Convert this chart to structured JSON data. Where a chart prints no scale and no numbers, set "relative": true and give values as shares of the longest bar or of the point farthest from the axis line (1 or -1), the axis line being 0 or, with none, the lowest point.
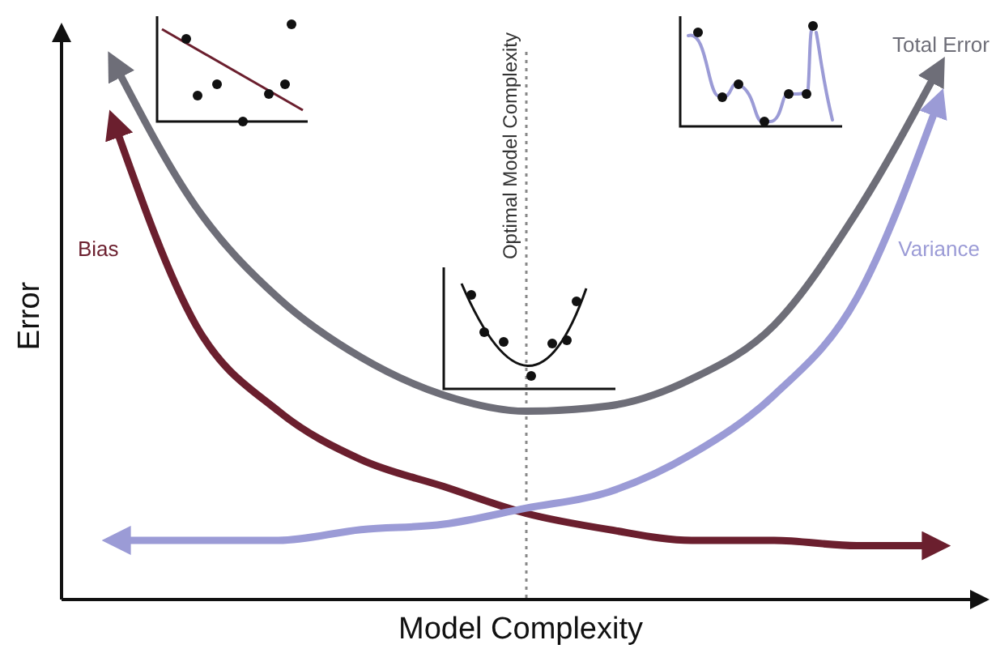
{
  "chart_data": {
    "type": "line",
    "relative": true,
    "xlabel": "Model Complexity",
    "ylabel": "Error",
    "annotations": [
      "Optimal Model Complexity"
    ],
    "categories": [
      null,
      null,
      null,
      null,
      null,
      null,
      null,
      null,
      null,
      null,
      null
    ],
    "series": [
      {
        "name": "Total Error",
        "color": "#6e6e78",
        "values": [
          1.0,
          0.73,
          0.56,
          0.45,
          0.38,
          0.35,
          0.36,
          0.41,
          0.51,
          0.72,
          0.99
        ]
      },
      {
        "name": "Bias",
        "color": "#6b1f2e",
        "values": [
          0.89,
          0.51,
          0.35,
          0.26,
          0.21,
          0.16,
          0.13,
          0.11,
          0.11,
          0.1,
          0.1
        ]
      },
      {
        "name": "Variance",
        "color": "#9b9bd6",
        "values": [
          0.11,
          0.11,
          0.11,
          0.13,
          0.14,
          0.17,
          0.2,
          0.27,
          0.38,
          0.56,
          0.93
        ]
      }
    ],
    "legend": false,
    "marker": "none",
    "line_style": "solid"
  }
}
